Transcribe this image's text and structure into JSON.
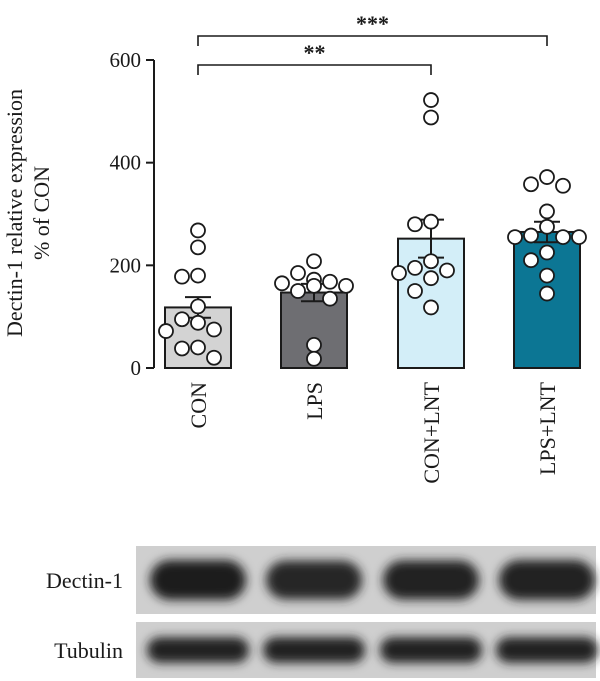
{
  "chart_data": {
    "type": "bar",
    "ylabel_line1": "Dectin-1 relative expression",
    "ylabel_line2": "% of CON",
    "ylim": [
      0,
      600
    ],
    "yticks": [
      0,
      200,
      400,
      600
    ],
    "categories": [
      "CON",
      "LPS",
      "CON+LNT",
      "LPS+LNT"
    ],
    "values": [
      118,
      147,
      252,
      265
    ],
    "errors": [
      20,
      17,
      37,
      20
    ],
    "bar_colors": [
      "#d3d3d3",
      "#6e6e72",
      "#d3eef8",
      "#0c7694"
    ],
    "points": [
      [
        268,
        235,
        180,
        178,
        120,
        95,
        88,
        75,
        72,
        40,
        38,
        20
      ],
      [
        208,
        185,
        172,
        168,
        165,
        160,
        160,
        150,
        135,
        45,
        18
      ],
      [
        522,
        488,
        285,
        280,
        208,
        195,
        190,
        185,
        175,
        150,
        118
      ],
      [
        372,
        358,
        355,
        305,
        275,
        258,
        255,
        255,
        255,
        225,
        210,
        180,
        145
      ]
    ],
    "significance": [
      {
        "from": 0,
        "to": 3,
        "label": "***"
      },
      {
        "from": 0,
        "to": 2,
        "label": "**"
      }
    ]
  },
  "blot": {
    "rows": [
      {
        "label": "Dectin-1",
        "band_intensity": [
          0.98,
          0.88,
          0.92,
          0.97
        ]
      },
      {
        "label": "Tubulin",
        "band_intensity": [
          0.95,
          0.95,
          0.95,
          0.95
        ]
      }
    ]
  }
}
